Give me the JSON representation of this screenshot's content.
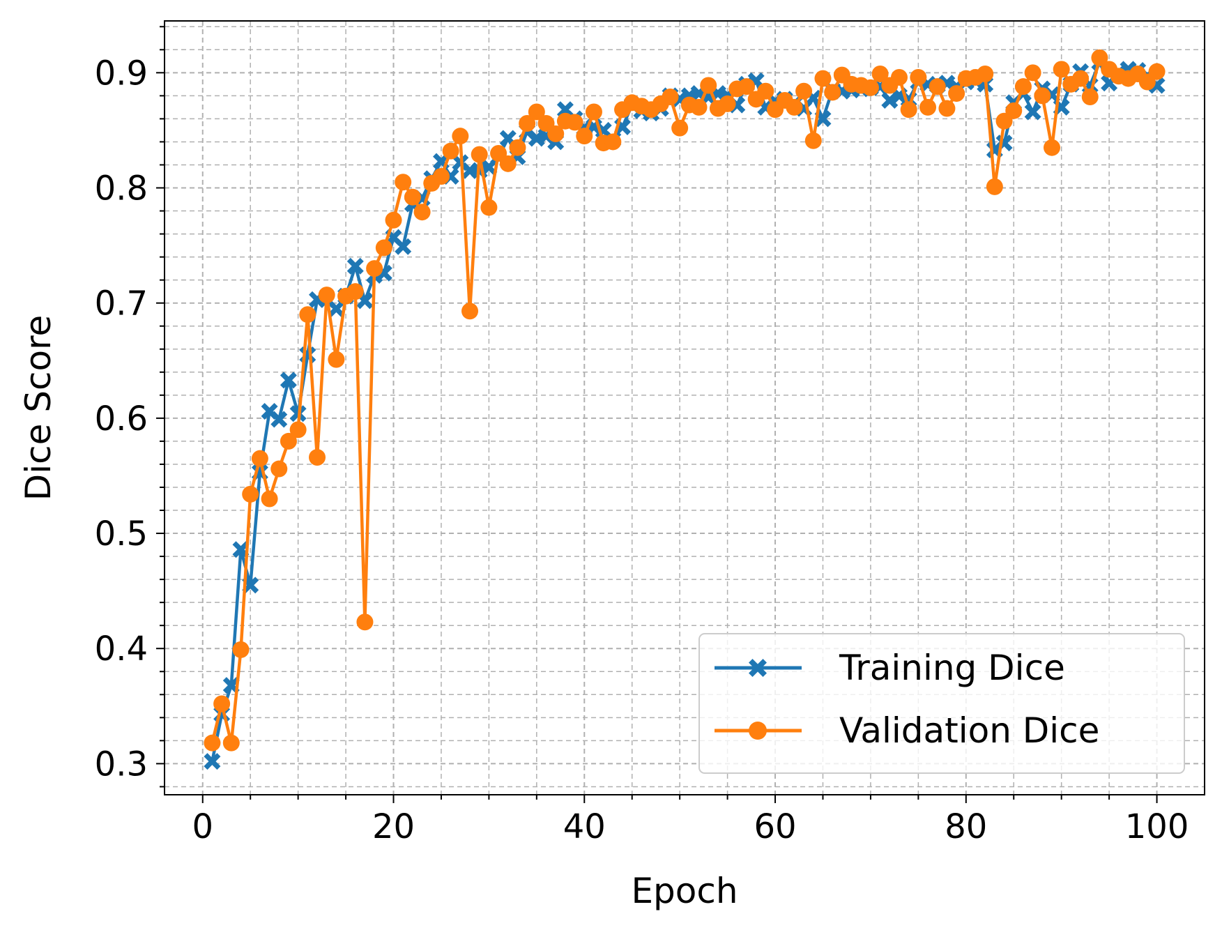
{
  "chart_data": {
    "type": "line",
    "title": "",
    "xlabel": "Epoch",
    "ylabel": "Dice Score",
    "xlim": [
      -4,
      105
    ],
    "ylim": [
      0.273,
      0.945
    ],
    "xticks": [
      0,
      20,
      40,
      60,
      80,
      100
    ],
    "yticks": [
      0.3,
      0.4,
      0.5,
      0.6,
      0.7,
      0.8,
      0.9
    ],
    "grid": true,
    "grid_style": "dashed, major and minor",
    "legend_position": "lower-right",
    "x": [
      1,
      2,
      3,
      4,
      5,
      6,
      7,
      8,
      9,
      10,
      11,
      12,
      13,
      14,
      15,
      16,
      17,
      18,
      19,
      20,
      21,
      22,
      23,
      24,
      25,
      26,
      27,
      28,
      29,
      30,
      31,
      32,
      33,
      34,
      35,
      36,
      37,
      38,
      39,
      40,
      41,
      42,
      43,
      44,
      45,
      46,
      47,
      48,
      49,
      50,
      51,
      52,
      53,
      54,
      55,
      56,
      57,
      58,
      59,
      60,
      61,
      62,
      63,
      64,
      65,
      66,
      67,
      68,
      69,
      70,
      71,
      72,
      73,
      74,
      75,
      76,
      77,
      78,
      79,
      80,
      81,
      82,
      83,
      84,
      85,
      86,
      87,
      88,
      89,
      90,
      91,
      92,
      93,
      94,
      95,
      96,
      97,
      98,
      99,
      100
    ],
    "series": [
      {
        "name": "Training Dice",
        "color": "#1f77b4",
        "marker": "X",
        "values": [
          0.302,
          0.343,
          0.368,
          0.486,
          0.455,
          0.553,
          0.606,
          0.599,
          0.633,
          0.604,
          0.655,
          0.703,
          0.703,
          0.695,
          0.706,
          0.732,
          0.702,
          0.724,
          0.726,
          0.757,
          0.749,
          0.786,
          0.791,
          0.808,
          0.823,
          0.81,
          0.822,
          0.815,
          0.815,
          0.818,
          0.827,
          0.843,
          0.827,
          0.849,
          0.843,
          0.845,
          0.84,
          0.868,
          0.86,
          0.852,
          0.853,
          0.85,
          0.842,
          0.853,
          0.872,
          0.867,
          0.865,
          0.869,
          0.88,
          0.877,
          0.88,
          0.882,
          0.879,
          0.882,
          0.88,
          0.872,
          0.89,
          0.893,
          0.87,
          0.875,
          0.877,
          0.873,
          0.869,
          0.878,
          0.86,
          0.885,
          0.884,
          0.885,
          0.886,
          0.887,
          0.888,
          0.876,
          0.88,
          0.877,
          0.892,
          0.89,
          0.889,
          0.891,
          0.888,
          0.892,
          0.893,
          0.89,
          0.833,
          0.839,
          0.874,
          0.882,
          0.866,
          0.886,
          0.881,
          0.87,
          0.89,
          0.901,
          0.889,
          0.909,
          0.891,
          0.9,
          0.903,
          0.902,
          0.897,
          0.889
        ]
      },
      {
        "name": "Validation Dice",
        "color": "#ff7f0e",
        "marker": "o",
        "values": [
          0.318,
          0.352,
          0.318,
          0.399,
          0.534,
          0.565,
          0.53,
          0.556,
          0.58,
          0.59,
          0.69,
          0.566,
          0.707,
          0.651,
          0.706,
          0.71,
          0.423,
          0.73,
          0.748,
          0.772,
          0.805,
          0.792,
          0.779,
          0.804,
          0.81,
          0.832,
          0.845,
          0.693,
          0.829,
          0.783,
          0.83,
          0.821,
          0.835,
          0.856,
          0.866,
          0.856,
          0.847,
          0.858,
          0.857,
          0.845,
          0.866,
          0.839,
          0.84,
          0.868,
          0.874,
          0.871,
          0.868,
          0.873,
          0.879,
          0.852,
          0.872,
          0.87,
          0.889,
          0.869,
          0.873,
          0.886,
          0.888,
          0.877,
          0.884,
          0.868,
          0.876,
          0.87,
          0.884,
          0.841,
          0.895,
          0.883,
          0.898,
          0.89,
          0.889,
          0.887,
          0.899,
          0.889,
          0.896,
          0.868,
          0.896,
          0.87,
          0.888,
          0.869,
          0.882,
          0.895,
          0.896,
          0.899,
          0.801,
          0.858,
          0.867,
          0.888,
          0.9,
          0.88,
          0.835,
          0.903,
          0.89,
          0.895,
          0.879,
          0.913,
          0.903,
          0.897,
          0.895,
          0.899,
          0.892,
          0.901
        ]
      }
    ]
  }
}
